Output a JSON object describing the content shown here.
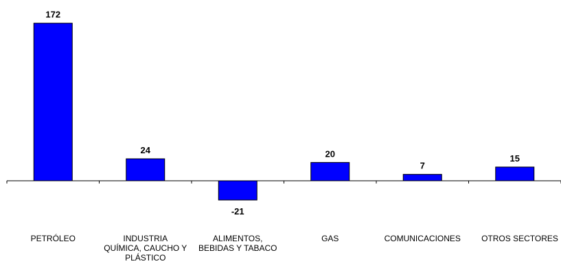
{
  "chart_data": {
    "type": "bar",
    "categories": [
      "PETRÓLEO",
      "INDUSTRIA\nQUÍMICA, CAUCHO Y\nPLÁSTICO",
      "ALIMENTOS,\nBEBIDAS Y TABACO",
      "GAS",
      "COMUNICACIONES",
      "OTROS SECTORES"
    ],
    "values": [
      172,
      24,
      -21,
      20,
      7,
      15
    ],
    "data_labels": [
      "172",
      "24",
      "-21",
      "20",
      "7",
      "15"
    ],
    "title": "",
    "xlabel": "",
    "ylabel": "",
    "ylim": [
      -30,
      185
    ],
    "grid": false,
    "legend": "none",
    "colors": {
      "bar_fill": "#0000ff",
      "bar_stroke": "#000000",
      "axis": "#000000"
    }
  }
}
